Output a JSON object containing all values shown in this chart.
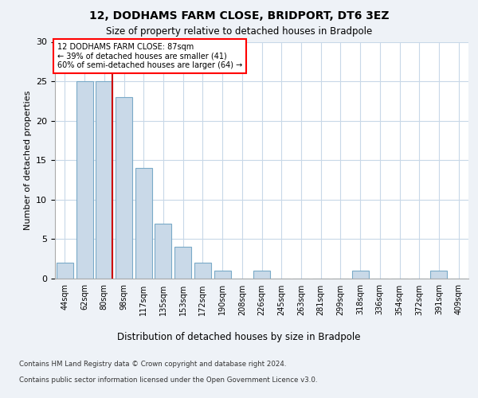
{
  "title": "12, DODHAMS FARM CLOSE, BRIDPORT, DT6 3EZ",
  "subtitle": "Size of property relative to detached houses in Bradpole",
  "xlabel": "Distribution of detached houses by size in Bradpole",
  "ylabel": "Number of detached properties",
  "bar_labels": [
    "44sqm",
    "62sqm",
    "80sqm",
    "98sqm",
    "117sqm",
    "135sqm",
    "153sqm",
    "172sqm",
    "190sqm",
    "208sqm",
    "226sqm",
    "245sqm",
    "263sqm",
    "281sqm",
    "299sqm",
    "318sqm",
    "336sqm",
    "354sqm",
    "372sqm",
    "391sqm",
    "409sqm"
  ],
  "bar_values": [
    2,
    25,
    25,
    23,
    14,
    7,
    4,
    2,
    1,
    0,
    1,
    0,
    0,
    0,
    0,
    1,
    0,
    0,
    0,
    1,
    0
  ],
  "bar_color": "#c9d9e8",
  "bar_edgecolor": "#7aaac8",
  "vline_color": "#cc0000",
  "annotation_title": "12 DODHAMS FARM CLOSE: 87sqm",
  "annotation_line1": "← 39% of detached houses are smaller (41)",
  "annotation_line2": "60% of semi-detached houses are larger (64) →",
  "ylim": [
    0,
    30
  ],
  "yticks": [
    0,
    5,
    10,
    15,
    20,
    25,
    30
  ],
  "footnote1": "Contains HM Land Registry data © Crown copyright and database right 2024.",
  "footnote2": "Contains public sector information licensed under the Open Government Licence v3.0.",
  "background_color": "#eef2f7",
  "plot_bg_color": "#ffffff",
  "grid_color": "#c8d8e8"
}
